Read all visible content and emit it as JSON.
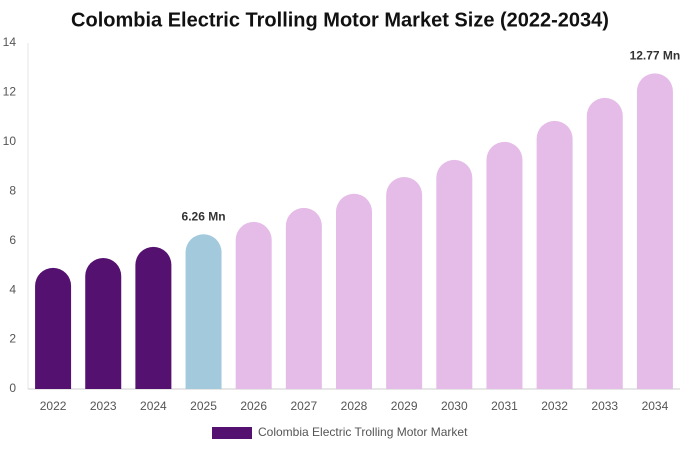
{
  "chart_data": {
    "type": "bar",
    "title": "Colombia Electric Trolling Motor Market Size (2022-2034)",
    "categories": [
      "2022",
      "2023",
      "2024",
      "2025",
      "2026",
      "2027",
      "2028",
      "2029",
      "2030",
      "2031",
      "2032",
      "2033",
      "2034"
    ],
    "series": [
      {
        "name": "Colombia Electric Trolling Motor Market",
        "color": "#541170",
        "values": [
          4.9,
          5.3,
          5.75,
          6.26,
          6.76,
          7.33,
          7.9,
          8.58,
          9.27,
          10.0,
          10.85,
          11.78,
          12.77
        ],
        "value_labels": [
          null,
          null,
          null,
          "6.26 Mn",
          null,
          null,
          null,
          null,
          null,
          null,
          null,
          null,
          "12.77 Mn"
        ],
        "colors": [
          "#541170",
          "#541170",
          "#541170",
          "#a3c9dd",
          "#e5bce8",
          "#e5bce8",
          "#e5bce8",
          "#e5bce8",
          "#e5bce8",
          "#e5bce8",
          "#e5bce8",
          "#e5bce8",
          "#e5bce8"
        ]
      }
    ],
    "ylim": [
      0,
      14
    ],
    "yticks": [
      0,
      2,
      4,
      6,
      8,
      10,
      12,
      14
    ],
    "grid": false
  }
}
